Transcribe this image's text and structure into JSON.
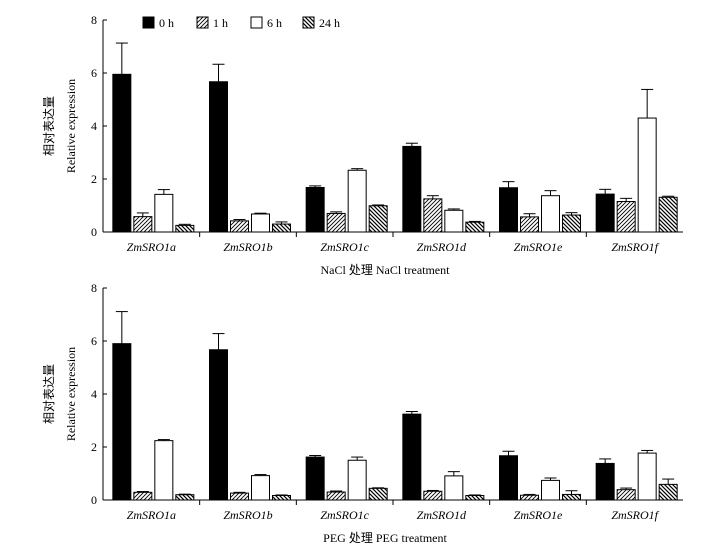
{
  "legend": [
    {
      "label": "0 h",
      "pattern": "solid"
    },
    {
      "label": "1 h",
      "pattern": "hatch-forward"
    },
    {
      "label": "6 h",
      "pattern": "open"
    },
    {
      "label": "24 h",
      "pattern": "hatch-back"
    }
  ],
  "chart_data": [
    {
      "type": "bar",
      "title": "",
      "xlabel": "NaCl 处理 NaCl treatment",
      "ylabel_cn": "相对表达量",
      "ylabel": "Relative expression",
      "ylim": [
        0,
        8
      ],
      "yticks": [
        "0",
        "2",
        "4",
        "6",
        "8"
      ],
      "categories": [
        "ZmSRO1a",
        "ZmSRO1b",
        "ZmSRO1c",
        "ZmSRO1d",
        "ZmSRO1e",
        "ZmSRO1f"
      ],
      "series": [
        {
          "name": "0 h",
          "values": [
            5.95,
            5.67,
            1.68,
            3.23,
            1.67,
            1.43
          ],
          "errors": [
            1.18,
            0.66,
            0.06,
            0.12,
            0.23,
            0.18
          ]
        },
        {
          "name": "1 h",
          "values": [
            0.58,
            0.42,
            0.7,
            1.25,
            0.57,
            1.15
          ],
          "errors": [
            0.14,
            0.05,
            0.06,
            0.12,
            0.12,
            0.12
          ]
        },
        {
          "name": "6 h",
          "values": [
            1.42,
            0.68,
            2.33,
            0.82,
            1.37,
            4.3
          ],
          "errors": [
            0.18,
            0.03,
            0.06,
            0.05,
            0.19,
            1.08
          ]
        },
        {
          "name": "24 h",
          "values": [
            0.25,
            0.3,
            0.99,
            0.37,
            0.64,
            1.31
          ],
          "errors": [
            0.04,
            0.08,
            0.03,
            0.03,
            0.09,
            0.04
          ]
        }
      ]
    },
    {
      "type": "bar",
      "title": "",
      "xlabel": "PEG 处理 PEG treatment",
      "ylabel_cn": "相对表达量",
      "ylabel": "Relative expression",
      "ylim": [
        0,
        8
      ],
      "yticks": [
        "0",
        "2",
        "4",
        "6",
        "8"
      ],
      "categories": [
        "ZmSRO1a",
        "ZmSRO1b",
        "ZmSRO1c",
        "ZmSRO1d",
        "ZmSRO1e",
        "ZmSRO1f"
      ],
      "series": [
        {
          "name": "0 h",
          "values": [
            5.9,
            5.67,
            1.62,
            3.24,
            1.67,
            1.38
          ],
          "errors": [
            1.21,
            0.61,
            0.06,
            0.1,
            0.17,
            0.17
          ]
        },
        {
          "name": "1 h",
          "values": [
            0.29,
            0.26,
            0.3,
            0.33,
            0.18,
            0.39
          ],
          "errors": [
            0.03,
            0.03,
            0.04,
            0.03,
            0.03,
            0.06
          ]
        },
        {
          "name": "6 h",
          "values": [
            2.24,
            0.92,
            1.5,
            0.91,
            0.74,
            1.77
          ],
          "errors": [
            0.04,
            0.04,
            0.12,
            0.16,
            0.09,
            0.1
          ]
        },
        {
          "name": "24 h",
          "values": [
            0.2,
            0.17,
            0.44,
            0.17,
            0.21,
            0.59
          ],
          "errors": [
            0.02,
            0.02,
            0.02,
            0.02,
            0.14,
            0.2
          ]
        }
      ]
    }
  ]
}
